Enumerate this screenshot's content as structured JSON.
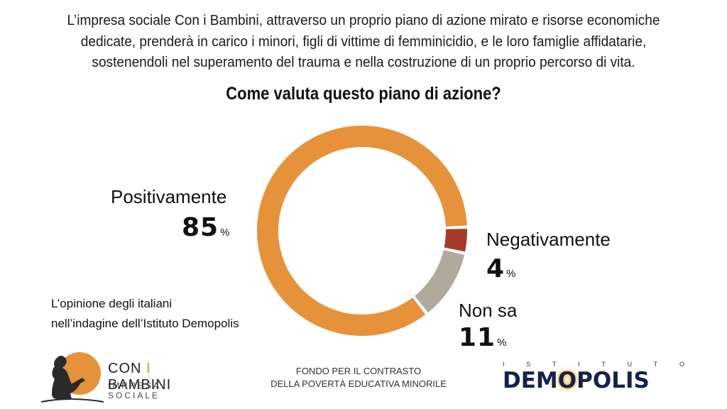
{
  "intro_lines": [
    "L’impresa sociale Con i Bambini, attraverso un proprio piano di azione mirato e risorse economiche",
    "dedicate, prenderà in carico i minori, figli di vittime di femminicidio, e le loro famiglie affidatarie,",
    "sostenendoli nel superamento del trauma e nella costruzione di un proprio percorso di vita."
  ],
  "note_lines": [
    "L’opinione degli italiani",
    "nell’indagine dell’Istituto Demopolis"
  ],
  "colors": {
    "positive": "#e6923a",
    "negative": "#a63b2c",
    "unknown": "#b0aa9d",
    "brand_navy": "#14234a"
  },
  "chart_data": {
    "type": "pie",
    "donut": true,
    "title": "Come valuta questo piano di azione?",
    "unit": "%",
    "slices": [
      {
        "label": "Positivamente",
        "value": 85,
        "color": "#e6923a"
      },
      {
        "label": "Negativamente",
        "value": 4,
        "color": "#a63b2c"
      },
      {
        "label": "Non sa",
        "value": 11,
        "color": "#b0aa9d"
      }
    ]
  },
  "footer": {
    "logo_left": {
      "brand_prefix": "CON ",
      "brand_accent": "I",
      "brand_suffix": " BAMBINI",
      "subtitle": "IMPRESA SOCIALE",
      "icon": "child-reading-icon"
    },
    "fondo_lines": [
      "FONDO PER IL CONTRASTO",
      "DELLA POVERTÀ EDUCATIVA MINORILE"
    ],
    "logo_right": {
      "istituto_letters": [
        "I",
        "S",
        "T",
        "I",
        "T",
        "U",
        "T",
        "O"
      ],
      "word_before": "DEM",
      "word_o": "O",
      "word_after": "POLIS"
    }
  }
}
